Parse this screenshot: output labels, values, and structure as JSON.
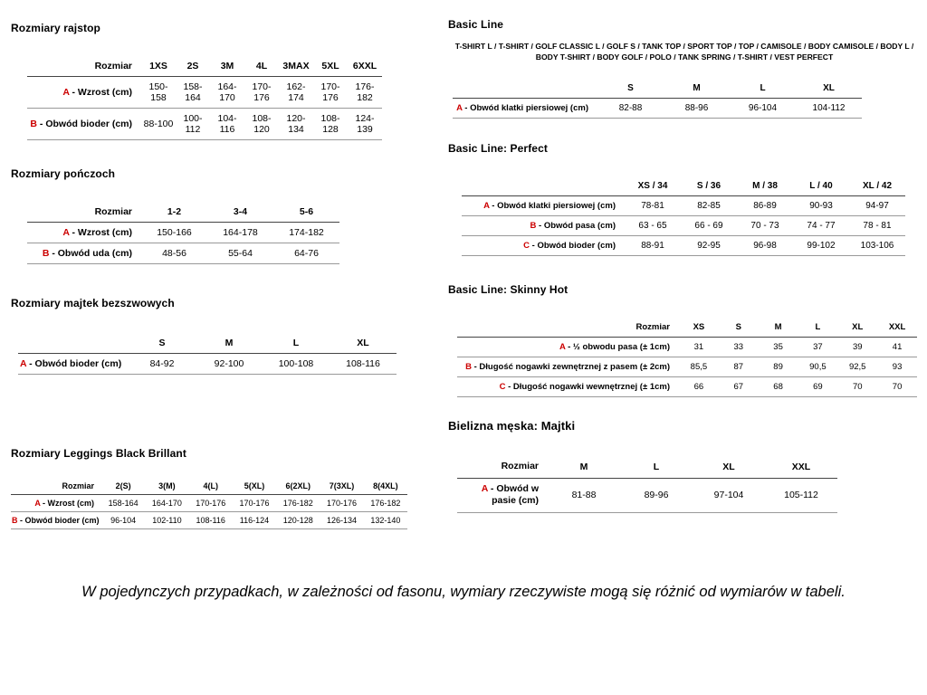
{
  "accent_color": "#cc0000",
  "footer_note": "W pojedynczych przypadkach, w zależności od fasonu, wymiary rzeczywiste mogą się różnić od wymiarów w tabeli.",
  "sections": [
    {
      "id": "rajstopy",
      "column": "left",
      "title": "Rozmiary rajstop",
      "size_header": "Rozmiar",
      "columns": [
        "1XS",
        "2S",
        "3M",
        "4L",
        "3MAX",
        "5XL",
        "6XXL"
      ],
      "rows": [
        {
          "prefix": "A",
          "label": "- Wzrost (cm)",
          "values": [
            "150-158",
            "158-164",
            "164-170",
            "170-176",
            "162-174",
            "170-176",
            "176-182"
          ]
        },
        {
          "prefix": "B",
          "label": "- Obwód bioder (cm)",
          "values": [
            "88-100",
            "100-112",
            "104-116",
            "108-120",
            "120-134",
            "108-128",
            "124-139"
          ]
        }
      ]
    },
    {
      "id": "ponczochy",
      "column": "left",
      "title": "Rozmiary pończoch",
      "size_header": "Rozmiar",
      "columns": [
        "1-2",
        "3-4",
        "5-6"
      ],
      "rows": [
        {
          "prefix": "A",
          "label": "- Wzrost (cm)",
          "values": [
            "150-166",
            "164-178",
            "174-182"
          ]
        },
        {
          "prefix": "B",
          "label": "- Obwód uda (cm)",
          "values": [
            "48-56",
            "55-64",
            "64-76"
          ]
        }
      ]
    },
    {
      "id": "majtki-bezszwowe",
      "column": "left",
      "title": "Rozmiary majtek bezszwowych",
      "size_header": "",
      "columns": [
        "S",
        "M",
        "L",
        "XL"
      ],
      "rows": [
        {
          "prefix": "A",
          "label": "- Obwód bioder (cm)",
          "values": [
            "84-92",
            "92-100",
            "100-108",
            "108-116"
          ]
        }
      ]
    },
    {
      "id": "leggings",
      "column": "left",
      "title": "Rozmiary Leggings Black Brillant",
      "size_header": "Rozmiar",
      "columns": [
        "2(S)",
        "3(M)",
        "4(L)",
        "5(XL)",
        "6(2XL)",
        "7(3XL)",
        "8(4XL)"
      ],
      "rows": [
        {
          "prefix": "A",
          "label": "- Wzrost (cm)",
          "values": [
            "158-164",
            "164-170",
            "170-176",
            "170-176",
            "176-182",
            "170-176",
            "176-182"
          ]
        },
        {
          "prefix": "B",
          "label": "- Obwód bioder (cm)",
          "values": [
            "96-104",
            "102-110",
            "108-116",
            "116-124",
            "120-128",
            "126-134",
            "132-140"
          ]
        }
      ]
    },
    {
      "id": "basic-line",
      "column": "right",
      "title": "Basic Line",
      "intro": "T-SHIRT L / T-SHIRT / GOLF CLASSIC L / GOLF S / TANK TOP / SPORT TOP / TOP / CAMISOLE / BODY CAMISOLE / BODY L / BODY T-SHIRT / BODY GOLF / POLO / TANK SPRING / T-SHIRT / VEST PERFECT",
      "size_header": "",
      "columns": [
        "S",
        "M",
        "L",
        "XL"
      ],
      "rows": [
        {
          "prefix": "A",
          "label": "- Obwód klatki piersiowej (cm)",
          "values": [
            "82-88",
            "88-96",
            "96-104",
            "104-112"
          ]
        }
      ]
    },
    {
      "id": "perfect",
      "column": "right",
      "title": "Basic Line: Perfect",
      "size_header": "",
      "columns": [
        "XS / 34",
        "S / 36",
        "M / 38",
        "L / 40",
        "XL / 42"
      ],
      "rows": [
        {
          "prefix": "A",
          "label": "- Obwód klatki piersiowej (cm)",
          "values": [
            "78-81",
            "82-85",
            "86-89",
            "90-93",
            "94-97"
          ]
        },
        {
          "prefix": "B",
          "label": "- Obwód pasa (cm)",
          "values": [
            "63 - 65",
            "66 - 69",
            "70 - 73",
            "74 - 77",
            "78 - 81"
          ]
        },
        {
          "prefix": "C",
          "label": "- Obwód bioder (cm)",
          "values": [
            "88-91",
            "92-95",
            "96-98",
            "99-102",
            "103-106"
          ]
        }
      ]
    },
    {
      "id": "skinny-hot",
      "column": "right",
      "title": "Basic Line: Skinny Hot",
      "size_header": "Rozmiar",
      "columns": [
        "XS",
        "S",
        "M",
        "L",
        "XL",
        "XXL"
      ],
      "rows": [
        {
          "prefix": "A",
          "label": "- ½ obwodu pasa (± 1cm)",
          "values": [
            "31",
            "33",
            "35",
            "37",
            "39",
            "41"
          ]
        },
        {
          "prefix": "B",
          "label": "- Długość nogawki zewnętrznej z pasem (± 2cm)",
          "values": [
            "85,5",
            "87",
            "89",
            "90,5",
            "92,5",
            "93"
          ]
        },
        {
          "prefix": "C",
          "label": "- Długość nogawki wewnętrznej (± 1cm)",
          "values": [
            "66",
            "67",
            "68",
            "69",
            "70",
            "70"
          ]
        }
      ]
    },
    {
      "id": "majtki-meskie",
      "column": "right",
      "title": "Bielizna męska: Majtki",
      "size_header": "Rozmiar",
      "columns": [
        "M",
        "L",
        "XL",
        "XXL"
      ],
      "rows": [
        {
          "prefix": "A",
          "label": "- Obwód w pasie (cm)",
          "values": [
            "81-88",
            "89-96",
            "97-104",
            "105-112"
          ]
        }
      ]
    }
  ]
}
